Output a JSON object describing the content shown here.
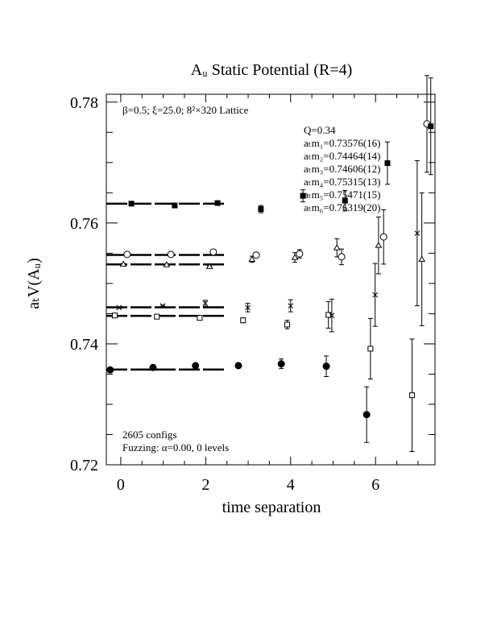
{
  "chart_data": {
    "type": "errorbar",
    "title": "Aᵤ Static Potential (R=4)",
    "xlabel": "time separation",
    "ylabel": "aₜV(Aᵤ)",
    "annotations": [
      "β=0.5; ξ=25.0; 8²×320 Lattice",
      "Q=0.34",
      "2605 configs",
      "Fuzzing: α=0.00, 0 levels"
    ],
    "xlim": [
      -0.34,
      7.4
    ],
    "ylim": [
      0.72,
      0.7813
    ],
    "xticks": [
      0,
      2,
      4,
      6
    ],
    "yticks": [
      0.72,
      0.74,
      0.76,
      0.78
    ],
    "xminorticks": [
      0.5,
      1,
      1.5,
      2.5,
      3,
      3.5,
      4.5,
      5,
      5.5,
      6.5,
      7
    ],
    "yminorticks": [
      0.725,
      0.73,
      0.735,
      0.745,
      0.75,
      0.755,
      0.765,
      0.77,
      0.775
    ],
    "fit_xrange": [
      -0.34,
      2.5
    ],
    "series": [
      {
        "name": "aₜm₁=0.73576(16)",
        "mass": 0.73576,
        "marker": "filled-circle",
        "color": "#000000",
        "x": [
          -0.25,
          0.76,
          1.76,
          2.77,
          3.78,
          4.84,
          5.79
        ],
        "values": [
          0.7357,
          0.7361,
          0.7364,
          0.7364,
          0.7367,
          0.7363,
          0.7283
        ],
        "errors": [
          0.0001,
          0.0001,
          0.0001,
          0.0003,
          0.0008,
          0.0017,
          0.0046
        ]
      },
      {
        "name": "aₜm₂=0.74464(14)",
        "mass": 0.74464,
        "marker": "open-square",
        "color": "#000000",
        "x": [
          -0.14,
          0.85,
          1.86,
          2.88,
          3.92,
          4.89,
          5.88,
          6.86
        ],
        "values": [
          0.7447,
          0.7445,
          0.7443,
          0.7439,
          0.7432,
          0.7448,
          0.7392,
          0.7315
        ],
        "errors": [
          0.0001,
          0.0001,
          0.0001,
          0.0004,
          0.0007,
          0.0022,
          0.005,
          0.0093
        ]
      },
      {
        "name": "aₜm₃=0.74606(12)",
        "mass": 0.74606,
        "marker": "cross",
        "color": "#000000",
        "x": [
          -0.04,
          0.99,
          1.99,
          2.99,
          4.0,
          4.97,
          5.99,
          6.98
        ],
        "values": [
          0.746,
          0.7463,
          0.7467,
          0.746,
          0.7463,
          0.7447,
          0.7481,
          0.7583
        ],
        "errors": [
          0.0001,
          0.0001,
          0.0005,
          0.0007,
          0.001,
          0.0027,
          0.0052,
          0.012
        ]
      },
      {
        "name": "aₜm₄=0.75315(13)",
        "mass": 0.75315,
        "marker": "open-triangle",
        "color": "#000000",
        "x": [
          0.06,
          1.08,
          2.09,
          3.09,
          4.1,
          5.09,
          6.07,
          7.09
        ],
        "values": [
          0.7532,
          0.7531,
          0.7528,
          0.754,
          0.7543,
          0.7559,
          0.7563,
          0.754
        ],
        "errors": [
          0.0001,
          0.0001,
          0.0001,
          0.0005,
          0.0008,
          0.0015,
          0.0047,
          0.011
        ]
      },
      {
        "name": "aₜm₅=0.75471(15)",
        "mass": 0.75471,
        "marker": "open-circle",
        "color": "#000000",
        "x": [
          0.15,
          1.18,
          2.18,
          3.19,
          4.21,
          5.2,
          6.19,
          7.21
        ],
        "values": [
          0.7548,
          0.7548,
          0.7552,
          0.7547,
          0.7549,
          0.7544,
          0.7577,
          0.7764
        ],
        "errors": [
          0.0001,
          0.0001,
          0.0002,
          0.0004,
          0.0007,
          0.0013,
          0.0045,
          0.008
        ]
      },
      {
        "name": "aₜm₆=0.76319(20)",
        "mass": 0.76319,
        "marker": "filled-square",
        "color": "#000000",
        "x": [
          0.25,
          1.27,
          2.28,
          3.3,
          4.29,
          5.28,
          6.28,
          7.3
        ],
        "values": [
          0.7632,
          0.7629,
          0.7633,
          0.7623,
          0.7645,
          0.7637,
          0.7699,
          0.776
        ],
        "errors": [
          0.0001,
          0.0001,
          0.0001,
          0.0006,
          0.001,
          0.0017,
          0.0035,
          0.008
        ]
      }
    ]
  }
}
